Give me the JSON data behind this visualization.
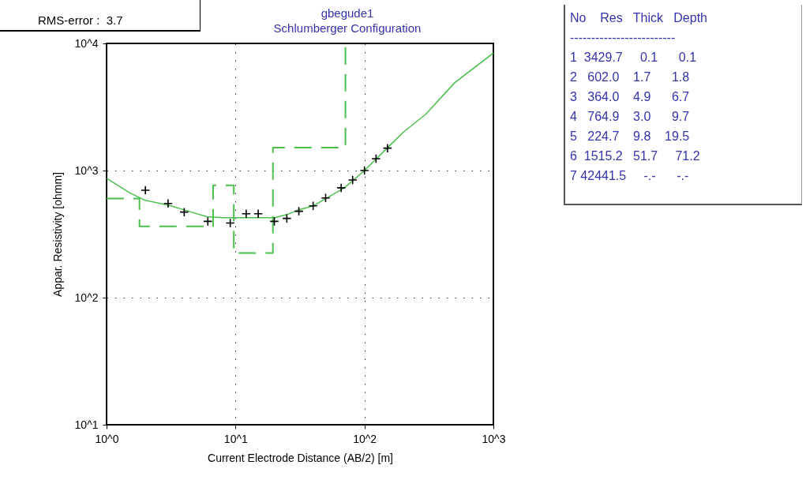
{
  "chart_data": {
    "type": "line",
    "title": "gbegude1",
    "subtitle": "Schlumberger Configuration",
    "xlabel": "Current Electrode Distance (AB/2) [m]",
    "ylabel": "Appar. Resistivity [ohmm]",
    "annotations": [
      "RMS-error :  3.7",
      "No    Res   Thick   Depth",
      "-------------------------",
      "1  3429.7     0.1      0.1",
      "2   602.0    1.7      1.8",
      "3   364.0    4.9      6.7",
      "4   764.9    3.0      9.7",
      "5   224.7    9.8    19.5",
      "6  1515.2   51.7     71.2",
      "7 42441.5     -.-      -.-"
    ],
    "log": "xy",
    "grid": true,
    "xlim": [
      1,
      1000
    ],
    "ylim": [
      10,
      10000
    ],
    "xticks": [
      {
        "value": 1,
        "label": "10^0"
      },
      {
        "value": 10,
        "label": "10^1"
      },
      {
        "value": 100,
        "label": "10^2"
      },
      {
        "value": 1000,
        "label": "10^3"
      }
    ],
    "yticks": [
      {
        "value": 10,
        "label": "10^1"
      },
      {
        "value": 100,
        "label": "10^2"
      },
      {
        "value": 1000,
        "label": "10^3"
      },
      {
        "value": 10000,
        "label": "10^4"
      }
    ],
    "series": [
      {
        "color": "#4cbf4c",
        "x": [
          1,
          1.5,
          2,
          3,
          4,
          6,
          8,
          10,
          20,
          25,
          30,
          40,
          50,
          70,
          100,
          150,
          200,
          300,
          500,
          1000
        ],
        "values": [
          867,
          671,
          582,
          535,
          490,
          433,
          425,
          425,
          425,
          450,
          485,
          527,
          600,
          731,
          1000,
          1500,
          2000,
          2780,
          4900,
          8400
        ]
      },
      {
        "type": "step",
        "color": "#4cbf4c",
        "line_style": "dashed",
        "x": [
          1,
          1.8,
          6.7,
          9.7,
          19.5,
          71.2
        ],
        "values": [
          602,
          364,
          764.9,
          224.7,
          1515.2,
          10000
        ]
      },
      {
        "type": "scatter",
        "color": "#000000",
        "marker": "cross",
        "x": [
          2,
          3,
          4,
          6.1,
          9.1,
          12.1,
          15,
          20,
          25,
          31,
          40,
          50,
          66,
          81,
          100,
          123,
          151
        ],
        "values": [
          700,
          550,
          471,
          398,
          386,
          457,
          457,
          398,
          420,
          478,
          527,
          608,
          731,
          843,
          1000,
          1240,
          1500
        ]
      }
    ]
  }
}
